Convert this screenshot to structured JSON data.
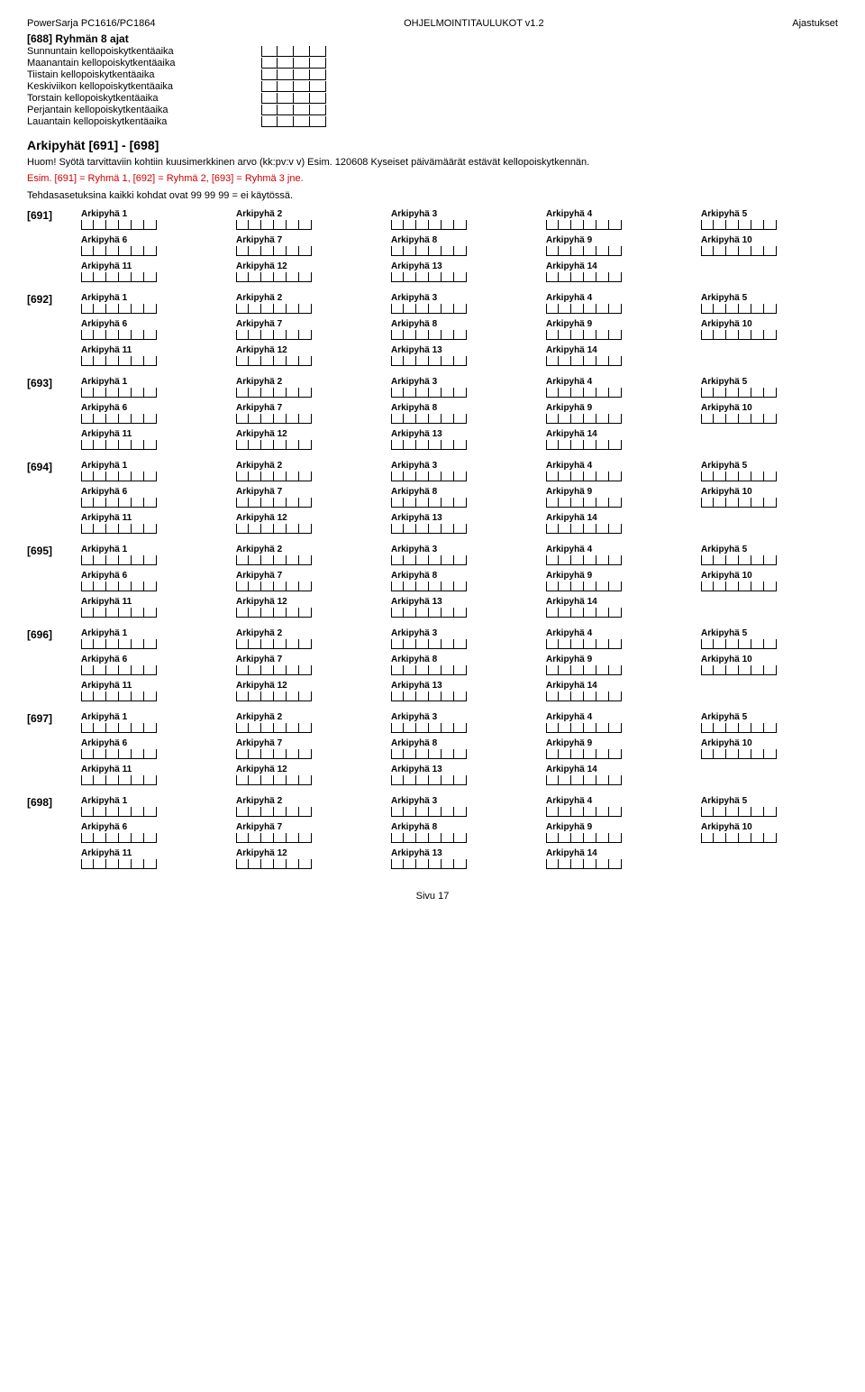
{
  "header": {
    "left": "PowerSarja PC1616/PC1864",
    "center": "OHJELMOINTITAULUKOT v1.2",
    "right": "Ajastukset"
  },
  "section688": {
    "title": "[688] Ryhmän 8 ajat",
    "days": [
      "Sunnuntain kellopoiskytkentäaika",
      "Maanantain kellopoiskytkentäaika",
      "Tiistain kellopoiskytkentäaika",
      "Keskiviikon kellopoiskytkentäaika",
      "Torstain kellopoiskytkentäaika",
      "Perjantain kellopoiskytkentäaika",
      "Lauantain kellopoiskytkentäaika"
    ]
  },
  "arkipyhat": {
    "title": "Arkipyhät [691] - [698]",
    "note1": "Huom! Syötä tarvittaviin kohtiin kuusimerkkinen arvo (kk:pv:v v) Esim. 120608 Kyseiset päivämäärät estävät kellopoiskytkennän.",
    "note_red": "Esim. [691] = Ryhmä 1, [692] = Ryhmä 2, [693] = Ryhmä 3 jne.",
    "note2": "Tehdasasetuksina kaikki kohdat ovat 99 99 99 = ei käytössä."
  },
  "groups": [
    {
      "code": "[691]"
    },
    {
      "code": "[692]"
    },
    {
      "code": "[693]"
    },
    {
      "code": "[694]"
    },
    {
      "code": "[695]"
    },
    {
      "code": "[696]"
    },
    {
      "code": "[697]"
    },
    {
      "code": "[698]"
    }
  ],
  "row1_labels": [
    "Arkipyhä 1",
    "Arkipyhä 2",
    "Arkipyhä 3",
    "Arkipyhä 4",
    "Arkipyhä 5"
  ],
  "row2_labels": [
    "Arkipyhä 6",
    "Arkipyhä 7",
    "Arkipyhä 8",
    "Arkipyhä 9",
    "Arkipyhä 10"
  ],
  "row3_labels": [
    "Arkipyhä 11",
    "Arkipyhä 12",
    "Arkipyhä 13",
    "Arkipyhä 14"
  ],
  "footer": "Sivu 17"
}
